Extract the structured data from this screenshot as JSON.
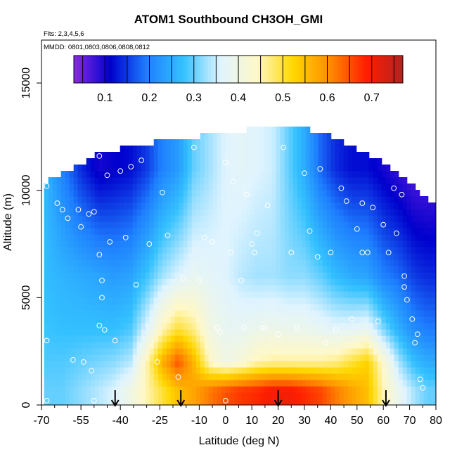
{
  "chart_data": {
    "type": "heatmap",
    "title": "ATOM1 Southbound CH3OH_GMI",
    "subtitle_lines": [
      "Flts: 2,3,4,5,6",
      "MMDD: 0801,0803,0806,0808,0812"
    ],
    "xlabel": "Latitude (deg N)",
    "ylabel": "Altitude (m)",
    "xlim": [
      -70,
      80
    ],
    "ylim": [
      0,
      17000
    ],
    "x_ticks": [
      -70,
      -55,
      -40,
      -25,
      -10,
      0,
      10,
      20,
      30,
      40,
      50,
      60,
      70,
      80
    ],
    "x_tick_labels": [
      "-70",
      "-55",
      "-40",
      "-25",
      "-10",
      "0",
      "10",
      "20",
      "30",
      "40",
      "50",
      "60",
      "70",
      "80"
    ],
    "x_minor_ticks": [
      -65,
      -60,
      -50,
      -45,
      -35,
      -30,
      -20,
      -15,
      -5,
      5,
      15,
      25,
      35,
      45,
      55,
      65,
      75
    ],
    "y_ticks": [
      0,
      5000,
      10000,
      15000
    ],
    "y_tick_labels": [
      "0",
      "5000",
      "10000",
      "15000"
    ],
    "colorbar": {
      "range": [
        0.03,
        0.77
      ],
      "ticks": [
        0.1,
        0.2,
        0.3,
        0.4,
        0.5,
        0.6,
        0.7
      ],
      "tick_labels": [
        "0.1",
        "0.2",
        "0.3",
        "0.4",
        "0.5",
        "0.6",
        "0.7"
      ],
      "colors": [
        "#8a2be2",
        "#0000cd",
        "#1e7fff",
        "#34c1ff",
        "#e0f4ff",
        "#fff8c8",
        "#ffd700",
        "#ff8c00",
        "#ff1e00",
        "#b22222"
      ]
    },
    "grid": false,
    "column_profiles": [
      {
        "lat": -68,
        "top": 10400,
        "upper": 0.26,
        "mid": 0.27,
        "low": 0.29,
        "surf": 0.3
      },
      {
        "lat": -62,
        "top": 10800,
        "upper": 0.2,
        "mid": 0.26,
        "low": 0.29,
        "surf": 0.3
      },
      {
        "lat": -55,
        "top": 11200,
        "upper": 0.14,
        "mid": 0.25,
        "low": 0.3,
        "surf": 0.32
      },
      {
        "lat": -48,
        "top": 11800,
        "upper": 0.1,
        "mid": 0.24,
        "low": 0.31,
        "surf": 0.34
      },
      {
        "lat": -42,
        "top": 11900,
        "upper": 0.11,
        "mid": 0.23,
        "low": 0.32,
        "surf": 0.36
      },
      {
        "lat": -36,
        "top": 12100,
        "upper": 0.12,
        "mid": 0.24,
        "low": 0.34,
        "surf": 0.4
      },
      {
        "lat": -30,
        "top": 12200,
        "upper": 0.15,
        "mid": 0.28,
        "low": 0.45,
        "surf": 0.45
      },
      {
        "lat": -24,
        "top": 12300,
        "upper": 0.2,
        "mid": 0.33,
        "low": 0.57,
        "surf": 0.5
      },
      {
        "lat": -18,
        "top": 12400,
        "upper": 0.23,
        "mid": 0.36,
        "low": 0.65,
        "surf": 0.55
      },
      {
        "lat": -12,
        "top": 12500,
        "upper": 0.3,
        "mid": 0.38,
        "low": 0.56,
        "surf": 0.58
      },
      {
        "lat": -6,
        "top": 12600,
        "upper": 0.33,
        "mid": 0.37,
        "low": 0.44,
        "surf": 0.62
      },
      {
        "lat": 0,
        "top": 12700,
        "upper": 0.36,
        "mid": 0.36,
        "low": 0.4,
        "surf": 0.65
      },
      {
        "lat": 6,
        "top": 12800,
        "upper": 0.37,
        "mid": 0.34,
        "low": 0.42,
        "surf": 0.67
      },
      {
        "lat": 12,
        "top": 12900,
        "upper": 0.36,
        "mid": 0.33,
        "low": 0.45,
        "surf": 0.68
      },
      {
        "lat": 18,
        "top": 12900,
        "upper": 0.35,
        "mid": 0.33,
        "low": 0.46,
        "surf": 0.7
      },
      {
        "lat": 24,
        "top": 13000,
        "upper": 0.3,
        "mid": 0.32,
        "low": 0.46,
        "surf": 0.7
      },
      {
        "lat": 30,
        "top": 12900,
        "upper": 0.25,
        "mid": 0.32,
        "low": 0.46,
        "surf": 0.68
      },
      {
        "lat": 36,
        "top": 12700,
        "upper": 0.18,
        "mid": 0.3,
        "low": 0.46,
        "surf": 0.66
      },
      {
        "lat": 42,
        "top": 12400,
        "upper": 0.14,
        "mid": 0.27,
        "low": 0.47,
        "surf": 0.62
      },
      {
        "lat": 48,
        "top": 12000,
        "upper": 0.12,
        "mid": 0.25,
        "low": 0.5,
        "surf": 0.58
      },
      {
        "lat": 54,
        "top": 11700,
        "upper": 0.12,
        "mid": 0.24,
        "low": 0.53,
        "surf": 0.55
      },
      {
        "lat": 60,
        "top": 11300,
        "upper": 0.1,
        "mid": 0.2,
        "low": 0.43,
        "surf": 0.45
      },
      {
        "lat": 66,
        "top": 10800,
        "upper": 0.08,
        "mid": 0.18,
        "low": 0.33,
        "surf": 0.38
      },
      {
        "lat": 72,
        "top": 10200,
        "upper": 0.06,
        "mid": 0.15,
        "low": 0.27,
        "surf": 0.33
      },
      {
        "lat": 77,
        "top": 9500,
        "upper": 0.06,
        "mid": 0.14,
        "low": 0.25,
        "surf": 0.3
      }
    ],
    "observation_points": [
      [
        -68,
        10200
      ],
      [
        -68,
        3000
      ],
      [
        -68,
        200
      ],
      [
        -64,
        9400
      ],
      [
        -62,
        9100
      ],
      [
        -60,
        8700
      ],
      [
        -58,
        2100
      ],
      [
        -56,
        9100
      ],
      [
        -55,
        8300
      ],
      [
        -54,
        2000
      ],
      [
        -52,
        8900
      ],
      [
        -51,
        1600
      ],
      [
        -50,
        9000
      ],
      [
        -50,
        200
      ],
      [
        -48,
        11600
      ],
      [
        -48,
        7000
      ],
      [
        -48,
        3700
      ],
      [
        -47,
        5800
      ],
      [
        -47,
        5000
      ],
      [
        -46,
        3500
      ],
      [
        -45,
        10700
      ],
      [
        -44,
        7600
      ],
      [
        -42,
        3000
      ],
      [
        -40,
        10900
      ],
      [
        -38,
        7800
      ],
      [
        -36,
        11100
      ],
      [
        -34,
        5600
      ],
      [
        -32,
        11400
      ],
      [
        -29,
        7500
      ],
      [
        -26,
        2000
      ],
      [
        -24,
        9900
      ],
      [
        -22,
        7900
      ],
      [
        -18,
        1300
      ],
      [
        -16,
        5900
      ],
      [
        -12,
        12000
      ],
      [
        -10,
        5800
      ],
      [
        -8,
        7800
      ],
      [
        -5,
        7600
      ],
      [
        -3,
        3600
      ],
      [
        -2,
        3400
      ],
      [
        0,
        11300
      ],
      [
        0,
        200
      ],
      [
        2,
        7100
      ],
      [
        3,
        10400
      ],
      [
        6,
        5800
      ],
      [
        7,
        3600
      ],
      [
        8,
        9800
      ],
      [
        10,
        7500
      ],
      [
        11,
        7100
      ],
      [
        12,
        8000
      ],
      [
        14,
        3600
      ],
      [
        15,
        3600
      ],
      [
        16,
        9300
      ],
      [
        20,
        3300
      ],
      [
        22,
        12000
      ],
      [
        25,
        7100
      ],
      [
        27,
        3600
      ],
      [
        30,
        10800
      ],
      [
        32,
        8100
      ],
      [
        35,
        6900
      ],
      [
        36,
        11000
      ],
      [
        38,
        2900
      ],
      [
        40,
        7100
      ],
      [
        42,
        3500
      ],
      [
        44,
        10100
      ],
      [
        46,
        9500
      ],
      [
        48,
        4000
      ],
      [
        50,
        8200
      ],
      [
        52,
        9400
      ],
      [
        52,
        7100
      ],
      [
        54,
        7100
      ],
      [
        56,
        9200
      ],
      [
        58,
        3900
      ],
      [
        60,
        8400
      ],
      [
        62,
        7100
      ],
      [
        64,
        10100
      ],
      [
        65,
        8000
      ],
      [
        67,
        9800
      ],
      [
        68,
        6000
      ],
      [
        68,
        5500
      ],
      [
        69,
        4900
      ],
      [
        71,
        4000
      ],
      [
        72,
        2900
      ],
      [
        73,
        3300
      ],
      [
        74,
        1200
      ],
      [
        75,
        800
      ]
    ],
    "flight_markers_lat": [
      -42,
      -17,
      20,
      61
    ]
  }
}
